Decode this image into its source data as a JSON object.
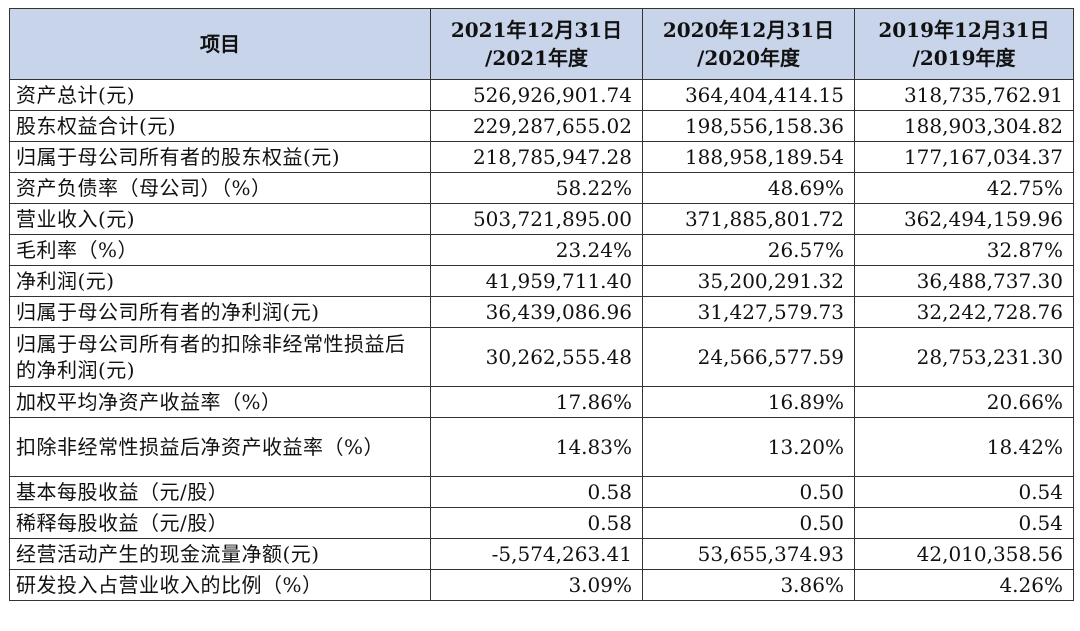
{
  "table": {
    "headers": [
      {
        "line1": "项目",
        "line2": ""
      },
      {
        "line1": "2021年12月31日",
        "line2": "/2021年度"
      },
      {
        "line1": "2020年12月31日",
        "line2": "/2020年度"
      },
      {
        "line1": "2019年12月31日",
        "line2": "/2019年度"
      }
    ],
    "rows": [
      {
        "label": "资产总计(元)",
        "v2021": "526,926,901.74",
        "v2020": "364,404,414.15",
        "v2019": "318,735,762.91"
      },
      {
        "label": "股东权益合计(元)",
        "v2021": "229,287,655.02",
        "v2020": "198,556,158.36",
        "v2019": "188,903,304.82"
      },
      {
        "label": "归属于母公司所有者的股东权益(元)",
        "v2021": "218,785,947.28",
        "v2020": "188,958,189.54",
        "v2019": "177,167,034.37"
      },
      {
        "label": "资产负债率（母公司）（%）",
        "v2021": "58.22%",
        "v2020": "48.69%",
        "v2019": "42.75%"
      },
      {
        "label": "营业收入(元)",
        "v2021": "503,721,895.00",
        "v2020": "371,885,801.72",
        "v2019": "362,494,159.96"
      },
      {
        "label": "毛利率（%）",
        "v2021": "23.24%",
        "v2020": "26.57%",
        "v2019": "32.87%"
      },
      {
        "label": "净利润(元)",
        "v2021": "41,959,711.40",
        "v2020": "35,200,291.32",
        "v2019": "36,488,737.30"
      },
      {
        "label": "归属于母公司所有者的净利润(元)",
        "v2021": "36,439,086.96",
        "v2020": "31,427,579.73",
        "v2019": "32,242,728.76"
      },
      {
        "label": "归属于母公司所有者的扣除非经常性损益后的净利润(元)",
        "v2021": "30,262,555.48",
        "v2020": "24,566,577.59",
        "v2019": "28,753,231.30"
      },
      {
        "label": "加权平均净资产收益率（%）",
        "v2021": "17.86%",
        "v2020": "16.89%",
        "v2019": "20.66%"
      },
      {
        "label": "扣除非经常性损益后净资产收益率（%）",
        "v2021": "14.83%",
        "v2020": "13.20%",
        "v2019": "18.42%"
      },
      {
        "label": "基本每股收益（元/股）",
        "v2021": "0.58",
        "v2020": "0.50",
        "v2019": "0.54"
      },
      {
        "label": "稀释每股收益（元/股）",
        "v2021": "0.58",
        "v2020": "0.50",
        "v2019": "0.54"
      },
      {
        "label": "经营活动产生的现金流量净额(元)",
        "v2021": "-5,574,263.41",
        "v2020": "53,655,374.93",
        "v2019": "42,010,358.56"
      },
      {
        "label": "研发投入占营业收入的比例（%）",
        "v2021": "3.09%",
        "v2020": "3.86%",
        "v2019": "4.26%"
      }
    ]
  }
}
